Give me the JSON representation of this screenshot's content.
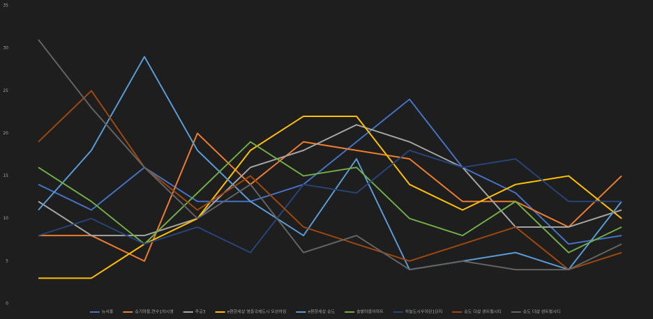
{
  "chart_data": {
    "type": "line",
    "categories": [
      null,
      null,
      null,
      null,
      null,
      null,
      null,
      null,
      null,
      null,
      null,
      null
    ],
    "ylim": [
      0,
      35
    ],
    "yticks": [
      0,
      5,
      10,
      15,
      20,
      25,
      30,
      35
    ],
    "grid": false,
    "legend": "bottom",
    "series": [
      {
        "name": "뉴서울",
        "color": "#4472c4",
        "values": [
          14,
          11,
          16,
          12,
          12,
          14,
          19,
          24,
          16,
          13,
          7,
          8
        ]
      },
      {
        "name": "승기마을,연수1차시영",
        "color": "#ed7d31",
        "values": [
          8,
          8,
          5,
          20,
          14,
          19,
          18,
          17,
          12,
          12,
          9,
          15
        ]
      },
      {
        "name": "주공3",
        "color": "#a5a5a5",
        "values": [
          12,
          8,
          8,
          10,
          16,
          18,
          21,
          19,
          16,
          9,
          9,
          11
        ]
      },
      {
        "name": "e편한세상 영종국제도시 오션하임",
        "color": "#ffc000",
        "values": [
          3,
          3,
          7,
          10,
          18,
          22,
          22,
          14,
          11,
          14,
          15,
          10
        ]
      },
      {
        "name": "e편한세상 송도",
        "color": "#5b9bd5",
        "values": [
          11,
          18,
          29,
          18,
          12,
          8,
          17,
          4,
          5,
          6,
          4,
          12
        ]
      },
      {
        "name": "솔밭마을이마트",
        "color": "#70ad47",
        "values": [
          16,
          12,
          7,
          13,
          19,
          15,
          16,
          10,
          8,
          12,
          6,
          9
        ]
      },
      {
        "name": "하늘도시우미린1단지",
        "color": "#264478",
        "values": [
          8,
          10,
          7,
          9,
          6,
          14,
          13,
          18,
          16,
          17,
          12,
          12
        ]
      },
      {
        "name": "송도 더샵 센트럴시티",
        "color": "#9e480e",
        "values": [
          19,
          25,
          16,
          11,
          15,
          9,
          7,
          5,
          7,
          9,
          4,
          6
        ]
      },
      {
        "name": "송도 더샵 센트럴시티",
        "color": "#636363",
        "values": [
          31,
          23,
          16,
          10,
          14,
          6,
          8,
          4,
          5,
          4,
          4,
          7
        ]
      }
    ]
  }
}
